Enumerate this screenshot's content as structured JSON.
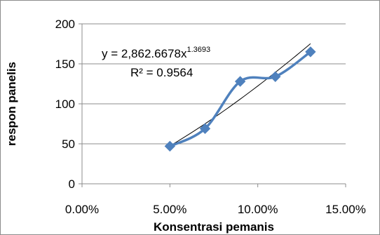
{
  "chart_data": {
    "type": "scatter",
    "xlabel": "Konsentrasi pemanis",
    "ylabel": "respon panelis",
    "xlim": [
      0,
      0.15
    ],
    "ylim": [
      0,
      200
    ],
    "x_ticks": [
      0,
      0.05,
      0.1,
      0.15
    ],
    "x_tick_labels": [
      "0.00%",
      "5.00%",
      "10.00%",
      "15.00%"
    ],
    "y_ticks": [
      0,
      50,
      100,
      150,
      200
    ],
    "y_tick_labels": [
      "0",
      "50",
      "100",
      "150",
      "200"
    ],
    "grid": "horizontal",
    "legend": "none",
    "series": [
      {
        "x": [
          0.05,
          0.07,
          0.09,
          0.11,
          0.13
        ],
        "y": [
          47,
          69,
          128,
          134,
          165
        ],
        "color": "#4F81BD",
        "marker": "diamond",
        "line": "smooth"
      }
    ],
    "trendline": {
      "type": "power",
      "coefficient": 2862.6678,
      "exponent": 1.3693,
      "color": "#000000"
    },
    "annotations": {
      "equation_base": "y = 2,862.6678x",
      "equation_exp": "1.3693",
      "r_squared": "R² = 0.9564"
    }
  }
}
